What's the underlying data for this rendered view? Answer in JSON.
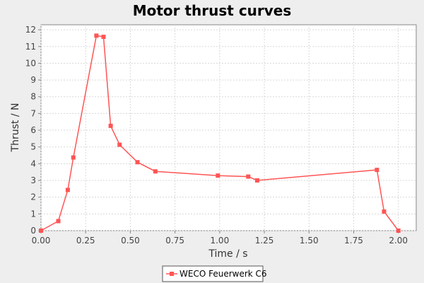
{
  "chart_data": {
    "type": "line",
    "title": "Motor thrust curves",
    "xlabel": "Time / s",
    "ylabel": "Thrust / N",
    "xlim": [
      0,
      2.1
    ],
    "ylim": [
      0,
      12.3
    ],
    "x_ticks": [
      "0.00",
      "0.25",
      "0.50",
      "0.75",
      "1.00",
      "1.25",
      "1.50",
      "1.75",
      "2.00"
    ],
    "y_ticks": [
      "0",
      "1",
      "2",
      "3",
      "4",
      "5",
      "6",
      "7",
      "8",
      "9",
      "10",
      "11",
      "12"
    ],
    "grid": true,
    "legend_placement": "bottom-center",
    "series": [
      {
        "name": "WECO Feuerwerk C6",
        "color": "#ff5555",
        "marker": "square",
        "x": [
          0.0,
          0.097,
          0.15,
          0.181,
          0.31,
          0.35,
          0.39,
          0.44,
          0.54,
          0.64,
          0.99,
          1.16,
          1.21,
          1.88,
          1.92,
          2.0
        ],
        "y": [
          0.0,
          0.57,
          2.43,
          4.37,
          11.65,
          11.58,
          6.26,
          5.13,
          4.09,
          3.54,
          3.29,
          3.23,
          3.0,
          3.63,
          1.14,
          0.0
        ]
      }
    ]
  }
}
